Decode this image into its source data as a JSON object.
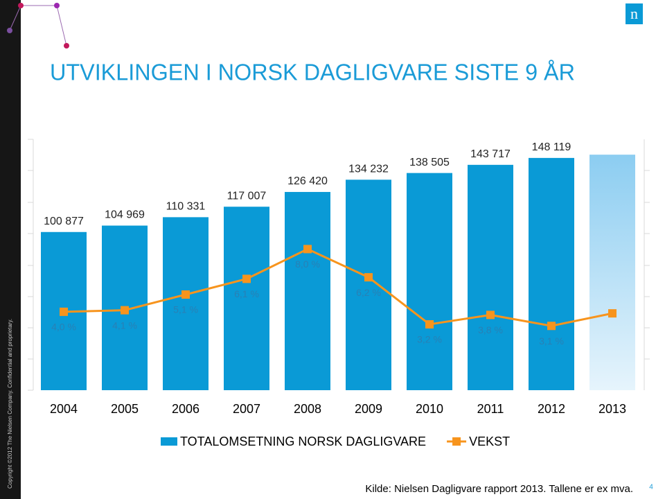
{
  "chart_data": {
    "type": "bar-line",
    "title": "UTVIKLINGEN I NORSK DAGLIGVARE SISTE 9 ÅR",
    "categories": [
      "2004",
      "2005",
      "2006",
      "2007",
      "2008",
      "2009",
      "2010",
      "2011",
      "2012",
      "2013"
    ],
    "series": [
      {
        "name": "TOTALOMSETNING NORSK DAGLIGVARE",
        "type": "bar",
        "color": "#0a9ad6",
        "values": [
          100877,
          104969,
          110331,
          117007,
          126420,
          134232,
          138505,
          143717,
          148119,
          150200
        ],
        "value_labels": [
          "100 877",
          "104 969",
          "110 331",
          "117 007",
          "126 420",
          "134 232",
          "138 505",
          "143 717",
          "148 119",
          null
        ]
      },
      {
        "name": "VEKST",
        "type": "line",
        "axis": "y2",
        "color": "#f7941d",
        "values": [
          4.0,
          4.1,
          5.1,
          6.1,
          8.0,
          6.2,
          3.2,
          3.8,
          3.1,
          3.9
        ],
        "value_labels": [
          "4,0 %",
          "4,1 %",
          "5,1 %",
          "6,1 %",
          "8,0 %",
          "6,2 %",
          "3,2 %",
          "3,8 %",
          "3,1 %",
          null
        ]
      }
    ],
    "ylim": [
      0,
      160000
    ],
    "y2lim": [
      -1,
      15
    ]
  },
  "source": "Kilde: Nielsen Dagligvare rapport 2013. Tallene er ex mva.",
  "page_number": "4",
  "copyright": "Copyright ©2012 The Nielsen Company. Confidential and proprietary.",
  "logo": "n"
}
